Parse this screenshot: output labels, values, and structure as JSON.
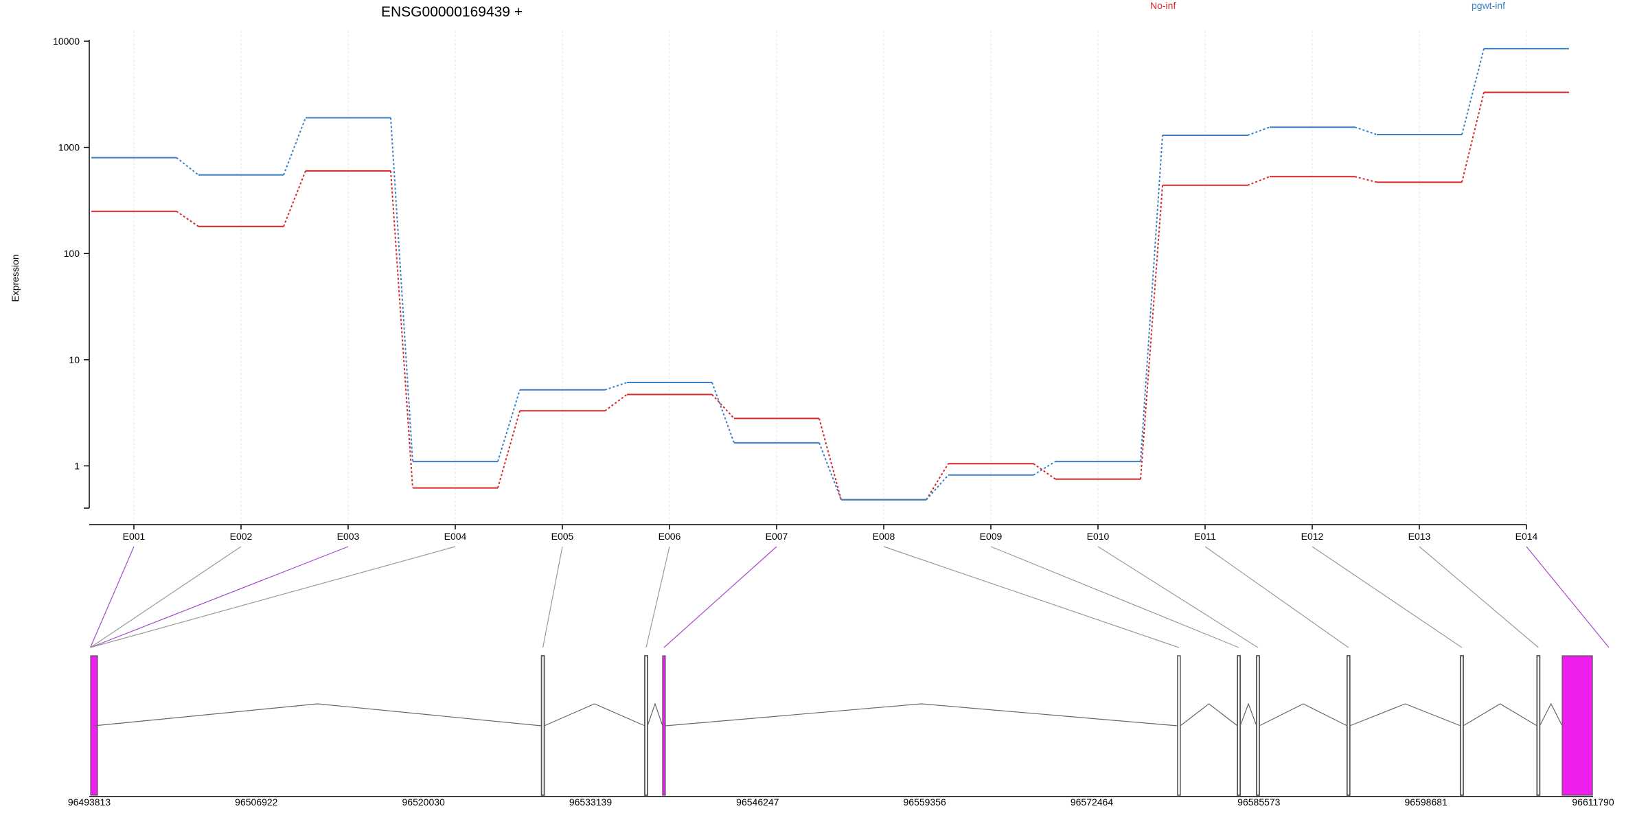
{
  "chart_data": {
    "type": "line",
    "title": "ENSG00000169439 +",
    "xlabel": "",
    "ylabel": "Expression",
    "y_scale": "log",
    "ylim": [
      0.4,
      10000
    ],
    "y_ticks": [
      1,
      10,
      100,
      1000,
      10000
    ],
    "y_tick_labels": [
      "1",
      "10",
      "100",
      "1000",
      "10000"
    ],
    "grid": "vertical dashed at exons",
    "legend_placement": "top",
    "categories": [
      "E001",
      "E002",
      "E003",
      "E004",
      "E005",
      "E006",
      "E007",
      "E008",
      "E009",
      "E010",
      "E011",
      "E012",
      "E013",
      "E014"
    ],
    "series": [
      {
        "name": "No-inf",
        "color": "#d62728",
        "values": [
          250,
          180,
          600,
          0.62,
          3.3,
          4.7,
          2.8,
          0.48,
          1.05,
          0.75,
          440,
          530,
          470,
          3300
        ]
      },
      {
        "name": "pgwt-inf",
        "color": "#3a7fc4",
        "values": [
          800,
          550,
          1900,
          1.1,
          5.2,
          6.1,
          1.65,
          0.48,
          0.82,
          1.1,
          1300,
          1550,
          1320,
          8500
        ]
      }
    ],
    "gene_model": {
      "genomic_start": 96493813,
      "genomic_end": 96611790,
      "tick_labels": [
        "96493813",
        "96506922",
        "96520030",
        "96533139",
        "96546247",
        "96559356",
        "96572464",
        "96585573",
        "96598681",
        "96611790"
      ],
      "highlight_color": "#ee1fee",
      "exon_positions": [
        96493900,
        96529400,
        96537500,
        96538900,
        96579300,
        96584000,
        96585500,
        96592600,
        96601500,
        96607500,
        96609800
      ],
      "exon_kinds": [
        "highlight",
        "normal",
        "normal",
        "highlight",
        "outline",
        "normal",
        "normal",
        "normal",
        "normal",
        "normal",
        "highlight"
      ],
      "links": [
        {
          "exon": "E001",
          "target": 96493900,
          "highlight": true
        },
        {
          "exon": "E002",
          "target": 96493900,
          "highlight": false
        },
        {
          "exon": "E003",
          "target": 96493900,
          "highlight": true
        },
        {
          "exon": "E004",
          "target": 96493900,
          "highlight": false
        },
        {
          "exon": "E005",
          "target": 96529400,
          "highlight": false
        },
        {
          "exon": "E006",
          "target": 96537500,
          "highlight": false
        },
        {
          "exon": "E007",
          "target": 96538900,
          "highlight": true
        },
        {
          "exon": "E008",
          "target": 96579300,
          "highlight": false
        },
        {
          "exon": "E009",
          "target": 96584000,
          "highlight": false
        },
        {
          "exon": "E010",
          "target": 96585500,
          "highlight": false
        },
        {
          "exon": "E011",
          "target": 96592600,
          "highlight": false
        },
        {
          "exon": "E012",
          "target": 96601500,
          "highlight": false
        },
        {
          "exon": "E013",
          "target": 96607500,
          "highlight": false
        },
        {
          "exon": "E014",
          "target": 96609800,
          "highlight": true
        }
      ]
    }
  }
}
